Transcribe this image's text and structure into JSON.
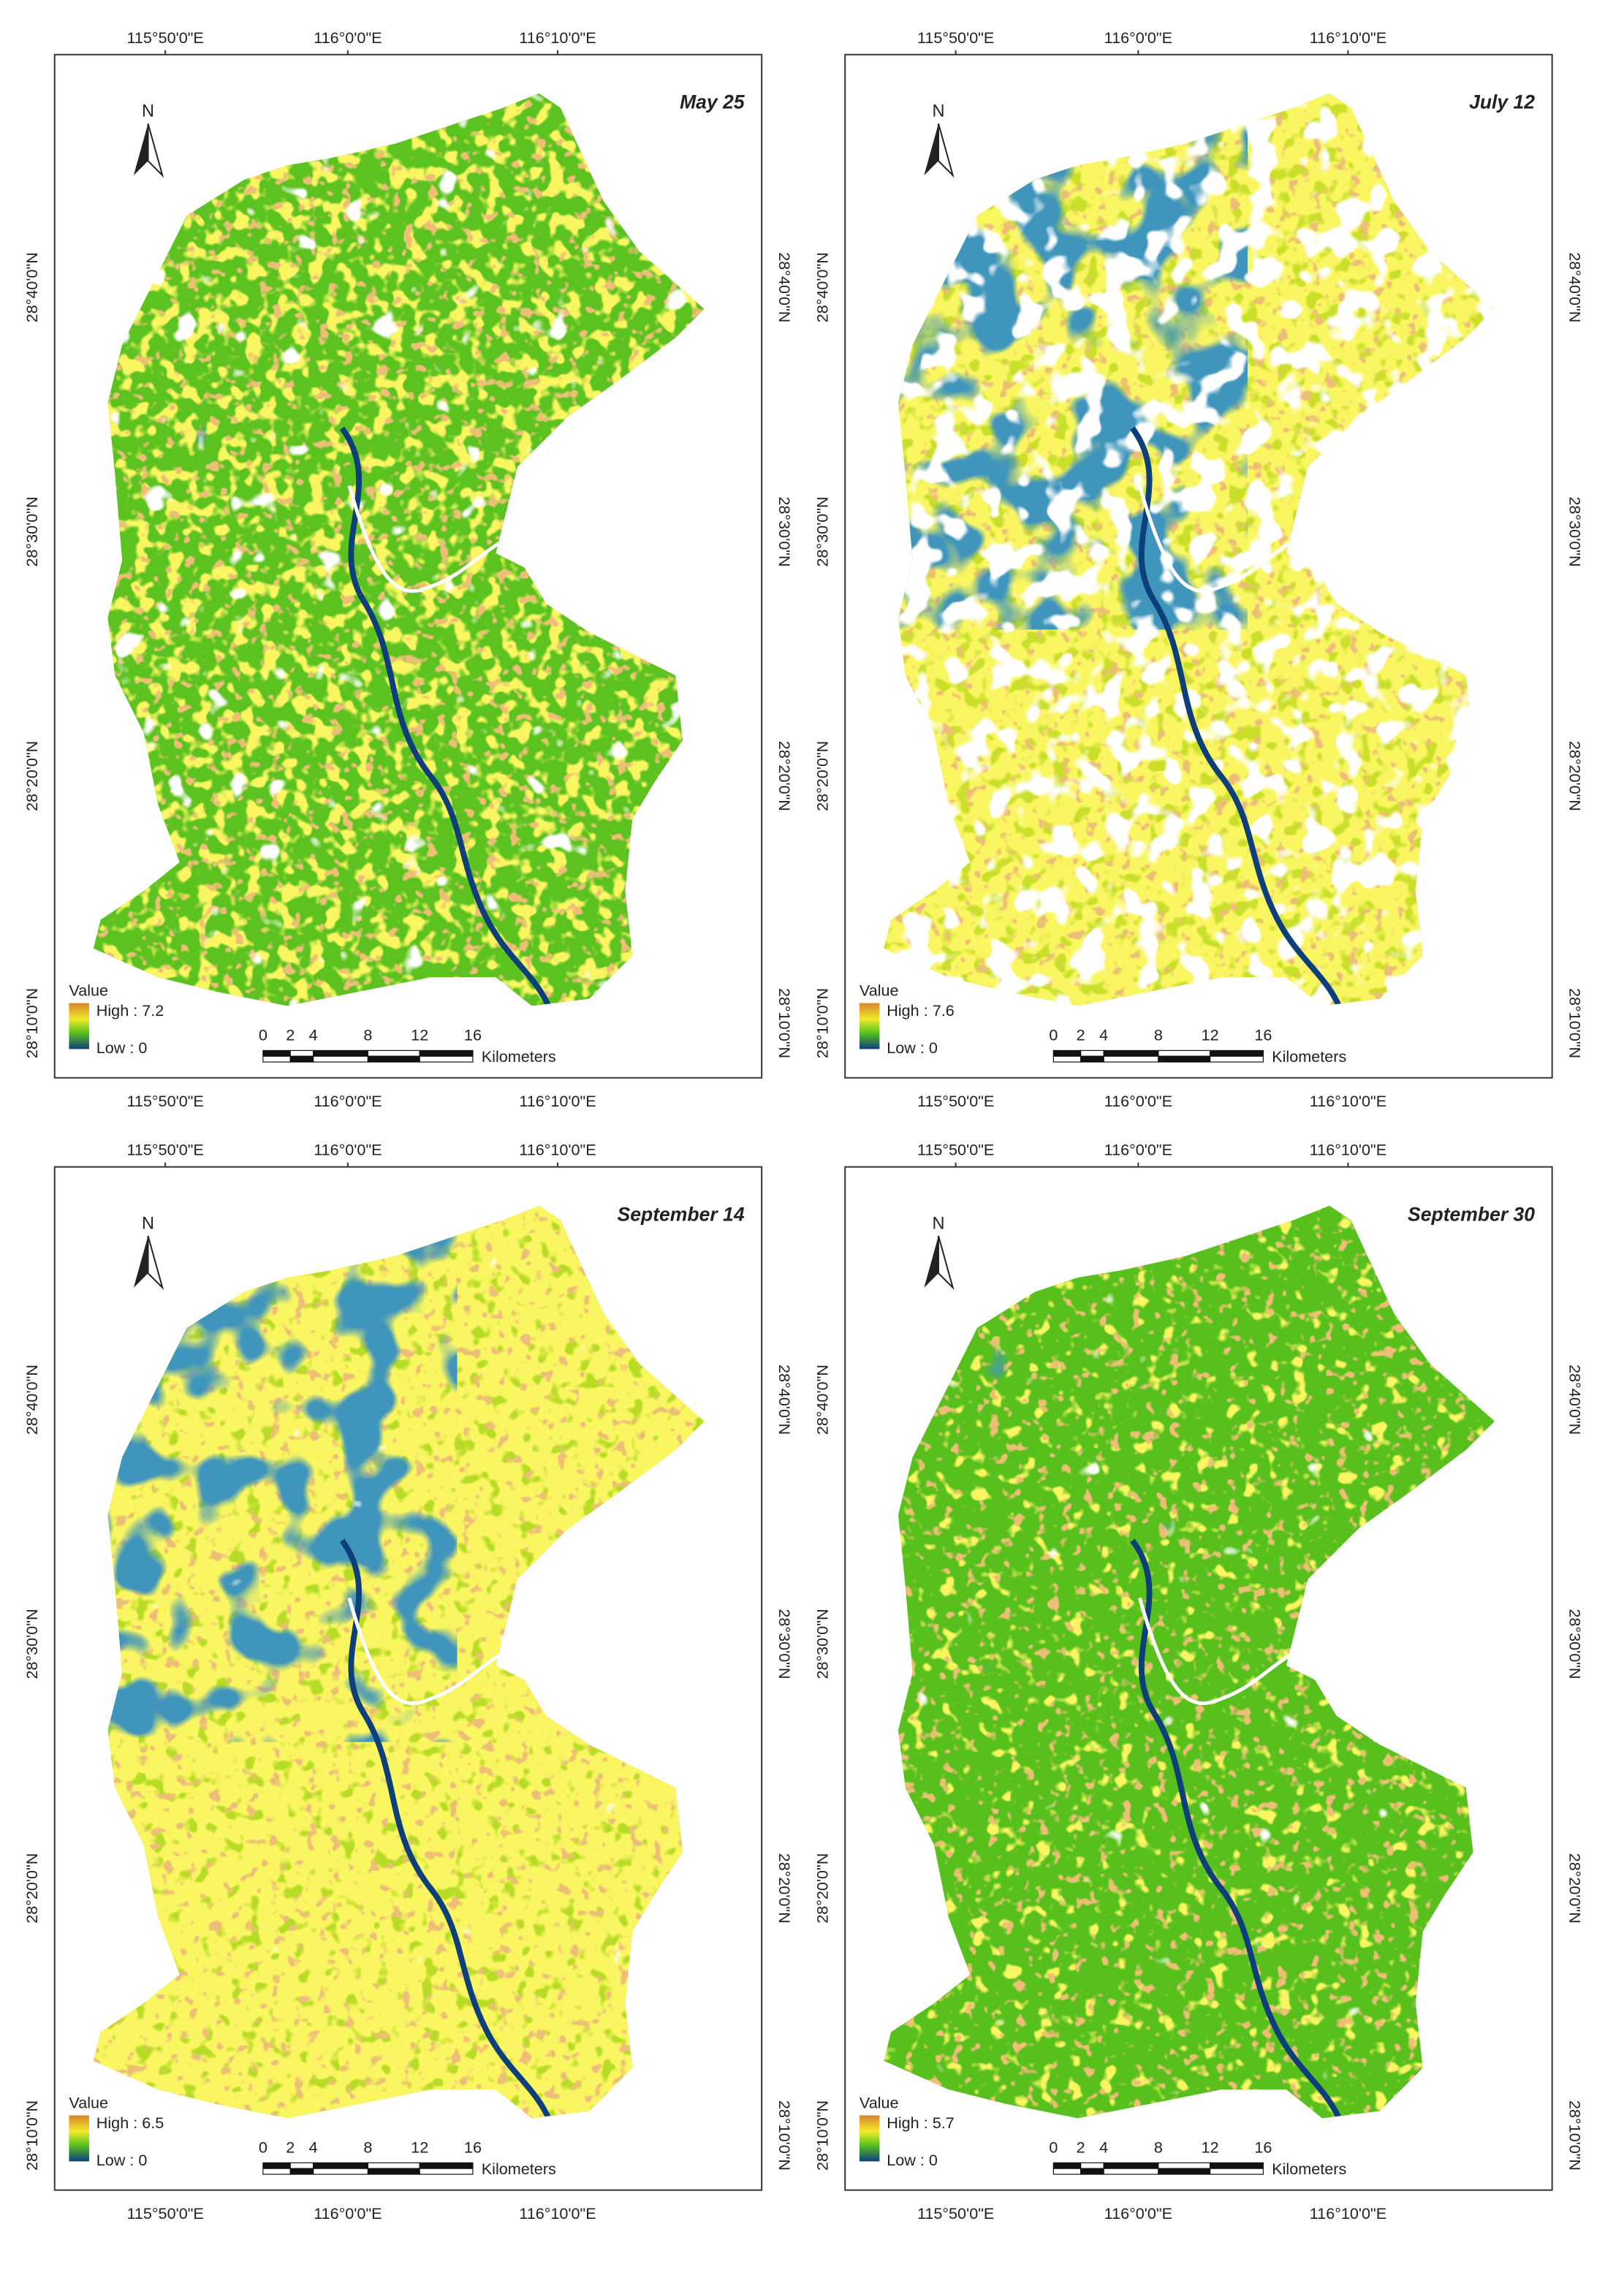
{
  "panels": [
    {
      "title": "May 25",
      "legend_high": "High : 7.2",
      "legend_low": "Low : 0"
    },
    {
      "title": "July 12",
      "legend_high": "High : 7.6",
      "legend_low": "Low : 0"
    },
    {
      "title": "September 14",
      "legend_high": "High : 6.5",
      "legend_low": "Low : 0"
    },
    {
      "title": "September 30",
      "legend_high": "High : 5.7",
      "legend_low": "Low : 0"
    }
  ],
  "legend_title": "Value",
  "north": "N",
  "lon_labels": [
    "115°50'0\"E",
    "116°0'0\"E",
    "116°10'0\"E"
  ],
  "lat_labels": [
    "28°40'0\"N",
    "28°30'0\"N",
    "28°20'0\"N",
    "28°10'0\"N"
  ],
  "scale_ticks": [
    "0",
    "2",
    "4",
    "8",
    "12",
    "16"
  ],
  "scale_unit": "Kilometers"
}
